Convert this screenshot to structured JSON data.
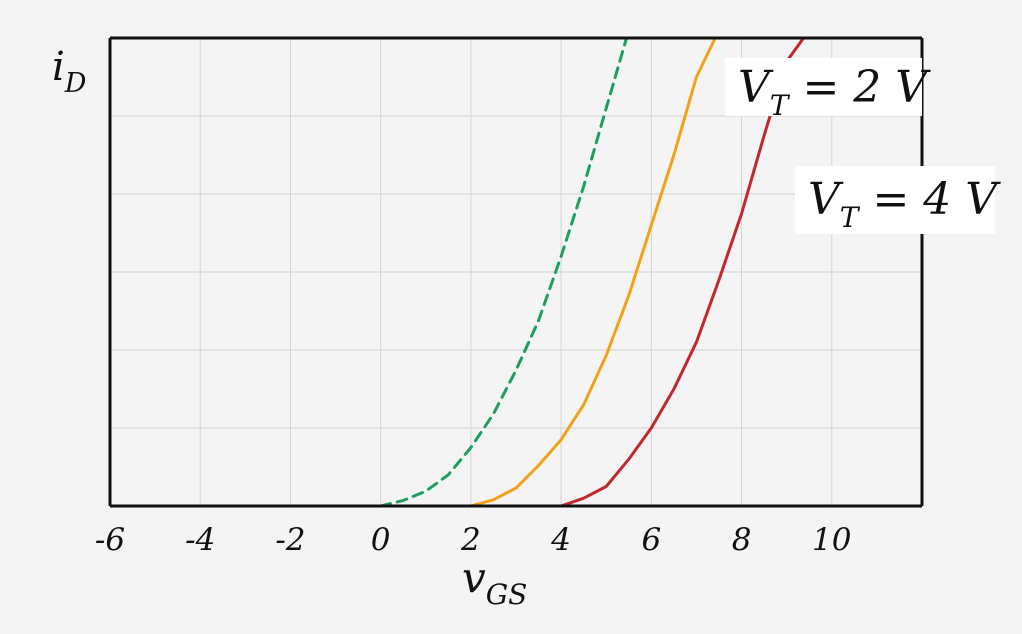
{
  "chart_data": {
    "type": "line",
    "xlabel": "v",
    "xlabel_sub": "GS",
    "ylabel": "i",
    "ylabel_sub": "D",
    "xlim": [
      -6,
      12
    ],
    "x_ticks": [
      -6,
      -4,
      -2,
      0,
      2,
      4,
      6,
      8,
      10
    ],
    "x_tick_labels": [
      "-6",
      "-4",
      "-2",
      "0",
      "2",
      "4",
      "6",
      "8",
      "10"
    ],
    "ylim": [
      0,
      6
    ],
    "grid": true,
    "series": [
      {
        "name": "",
        "color": "#1f9e5f",
        "dashed": true,
        "x": [
          0,
          0.5,
          1,
          1.5,
          2,
          2.5,
          3,
          3.5,
          4,
          4.5,
          5,
          5.5
        ],
        "y": [
          0,
          0.07,
          0.19,
          0.4,
          0.75,
          1.18,
          1.74,
          2.38,
          3.2,
          4.1,
          5.1,
          6.1
        ]
      },
      {
        "name": "",
        "color": "#f2a11a",
        "dashed": false,
        "x": [
          2,
          2.5,
          3,
          3.5,
          4,
          4.5,
          5,
          5.5,
          6,
          6.5,
          7,
          7.5
        ],
        "y": [
          0,
          0.08,
          0.23,
          0.52,
          0.85,
          1.3,
          1.93,
          2.7,
          3.6,
          4.5,
          5.5,
          6.1
        ]
      },
      {
        "name": "",
        "color": "#c0282d",
        "dashed": false,
        "x": [
          4,
          4.5,
          5,
          5.5,
          6,
          6.5,
          7,
          7.5,
          8,
          8.5,
          9,
          9.5
        ],
        "y": [
          0,
          0.1,
          0.25,
          0.6,
          1.0,
          1.5,
          2.1,
          2.9,
          3.75,
          4.75,
          5.7,
          6.1
        ]
      }
    ],
    "annotations": [
      {
        "main": "V",
        "sub": "T",
        "rest": " = 2 V"
      },
      {
        "main": "V",
        "sub": "T",
        "rest": " = 4 V"
      }
    ]
  }
}
